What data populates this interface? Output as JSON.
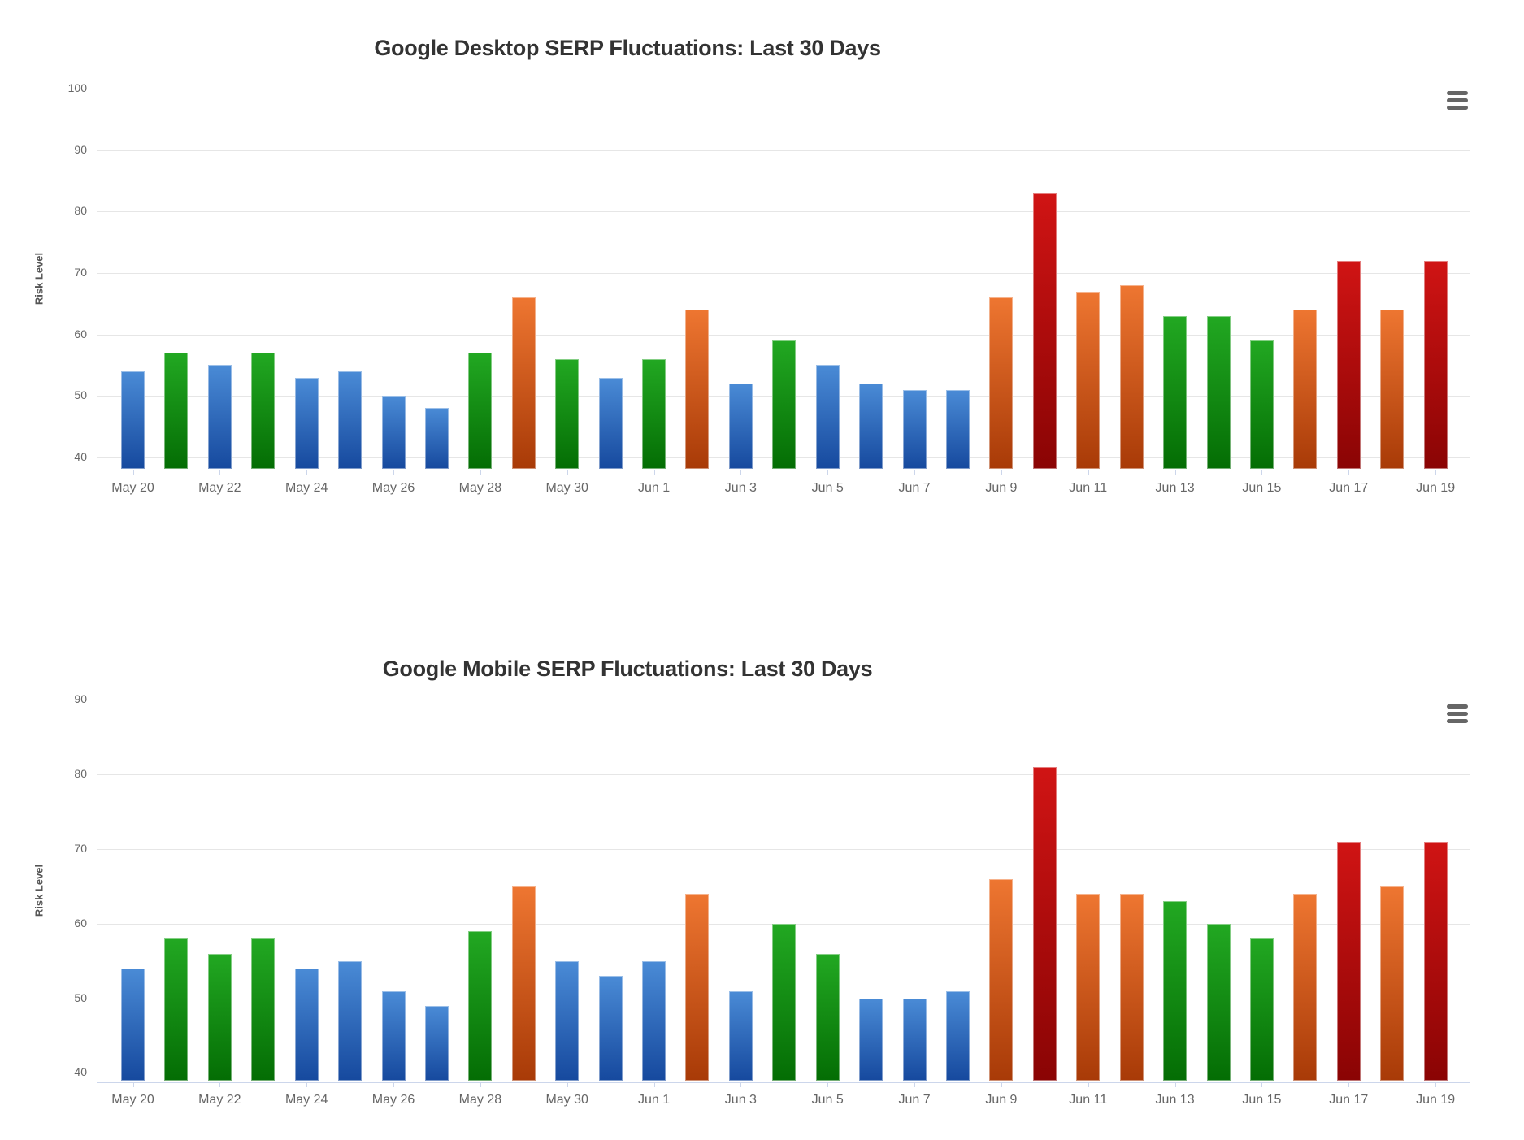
{
  "page": {
    "background": "#ffffff"
  },
  "chart_data": [
    {
      "id": "desktop",
      "type": "bar",
      "title": "Google Desktop SERP Fluctuations: Last 30 Days",
      "xlabel": "",
      "ylabel": "Risk Level",
      "ylim": [
        38,
        100
      ],
      "grid": true,
      "legend": false,
      "y_ticks": [
        100,
        90,
        80,
        70,
        60,
        50,
        40
      ],
      "x_tick_labels": [
        "May 20",
        "May 22",
        "May 24",
        "May 26",
        "May 28",
        "May 30",
        "Jun 1",
        "Jun 3",
        "Jun 5",
        "Jun 7",
        "Jun 9",
        "Jun 11",
        "Jun 13",
        "Jun 15",
        "Jun 17",
        "Jun 19"
      ],
      "categories": [
        "May 20",
        "May 21",
        "May 22",
        "May 23",
        "May 24",
        "May 25",
        "May 26",
        "May 27",
        "May 28",
        "May 29",
        "May 30",
        "May 31",
        "Jun 1",
        "Jun 2",
        "Jun 3",
        "Jun 4",
        "Jun 5",
        "Jun 6",
        "Jun 7",
        "Jun 8",
        "Jun 9",
        "Jun 10",
        "Jun 11",
        "Jun 12",
        "Jun 13",
        "Jun 14",
        "Jun 15",
        "Jun 16",
        "Jun 17",
        "Jun 18",
        "Jun 19"
      ],
      "values": [
        54,
        57,
        55,
        57,
        53,
        54,
        50,
        48,
        57,
        66,
        56,
        53,
        56,
        64,
        52,
        59,
        55,
        52,
        51,
        51,
        66,
        83,
        67,
        68,
        63,
        63,
        59,
        64,
        72,
        64,
        72
      ]
    },
    {
      "id": "mobile",
      "type": "bar",
      "title": "Google Mobile SERP Fluctuations: Last 30 Days",
      "xlabel": "",
      "ylabel": "Risk Level",
      "ylim": [
        38.8,
        90
      ],
      "grid": true,
      "legend": false,
      "y_ticks": [
        90,
        80,
        70,
        60,
        50,
        40
      ],
      "x_tick_labels": [
        "May 20",
        "May 22",
        "May 24",
        "May 26",
        "May 28",
        "May 30",
        "Jun 1",
        "Jun 3",
        "Jun 5",
        "Jun 7",
        "Jun 9",
        "Jun 11",
        "Jun 13",
        "Jun 15",
        "Jun 17",
        "Jun 19"
      ],
      "categories": [
        "May 20",
        "May 21",
        "May 22",
        "May 23",
        "May 24",
        "May 25",
        "May 26",
        "May 27",
        "May 28",
        "May 29",
        "May 30",
        "May 31",
        "Jun 1",
        "Jun 2",
        "Jun 3",
        "Jun 4",
        "Jun 5",
        "Jun 6",
        "Jun 7",
        "Jun 8",
        "Jun 9",
        "Jun 10",
        "Jun 11",
        "Jun 12",
        "Jun 13",
        "Jun 14",
        "Jun 15",
        "Jun 16",
        "Jun 17",
        "Jun 18",
        "Jun 19"
      ],
      "values": [
        54,
        58,
        56,
        58,
        54,
        55,
        51,
        49,
        59,
        65,
        55,
        53,
        55,
        64,
        51,
        60,
        56,
        50,
        50,
        51,
        66,
        81,
        64,
        64,
        63,
        60,
        58,
        64,
        71,
        65,
        71
      ]
    }
  ],
  "risk_palette": {
    "low": {
      "max": 55,
      "top": "#4a8bd6",
      "bottom": "#16499e"
    },
    "elevated": {
      "max": 63,
      "top": "#22a822",
      "bottom": "#046d04"
    },
    "high": {
      "max": 69,
      "top": "#ee7631",
      "bottom": "#a83a07"
    },
    "very_high": {
      "max": 100,
      "top": "#d01414",
      "bottom": "#8a0404"
    }
  },
  "axis_colors": {
    "grid": "#e6e6e6",
    "axis_line": "#ccd6eb",
    "tick_label": "#666666",
    "chart_title": "#333333",
    "axis_title": "#555555",
    "menu_icon": "#666666"
  }
}
